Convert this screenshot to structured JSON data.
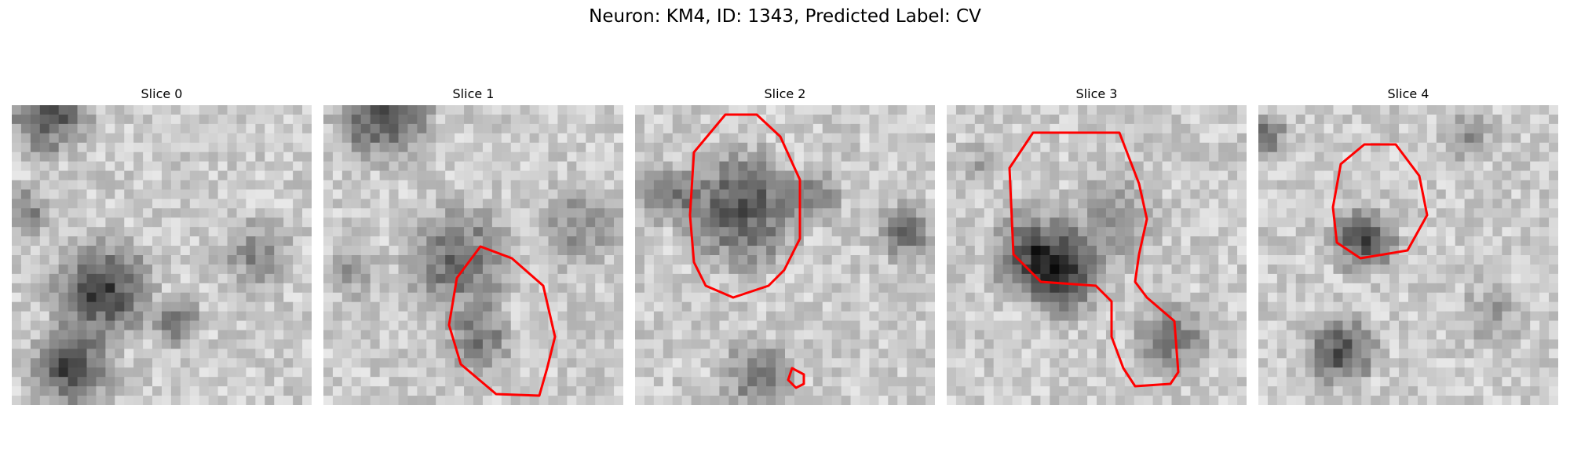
{
  "figure": {
    "title": "Neuron: KM4, ID: 1343, Predicted Label: CV"
  },
  "panels": [
    {
      "title": "Slice 0"
    },
    {
      "title": "Slice 1"
    },
    {
      "title": "Slice 2"
    },
    {
      "title": "Slice 3"
    },
    {
      "title": "Slice 4"
    }
  ],
  "style": {
    "contour_color": "#ff0000",
    "colormap": "grayscale"
  }
}
